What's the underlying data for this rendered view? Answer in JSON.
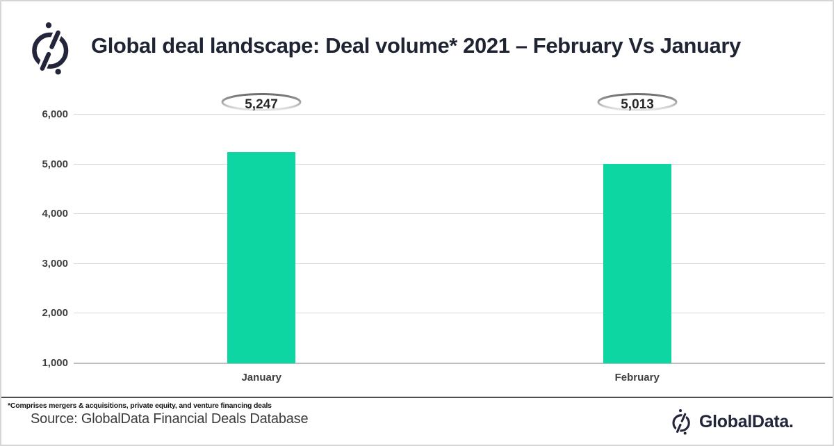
{
  "header": {
    "title": "Global deal landscape: Deal volume* 2021 – February Vs January",
    "logo_icon": "globaldata-mark-icon"
  },
  "chart_data": {
    "type": "bar",
    "categories": [
      "January",
      "February"
    ],
    "values": [
      5247,
      5013
    ],
    "value_labels": [
      "5,247",
      "5,013"
    ],
    "title": "Global deal landscape: Deal volume* 2021 – February Vs January",
    "xlabel": "",
    "ylabel": "",
    "ylim": [
      1000,
      6000
    ],
    "ytick_step": 1000,
    "ytick_labels": [
      "1,000",
      "2,000",
      "3,000",
      "4,000",
      "5,000",
      "6,000"
    ],
    "grid": true,
    "legend": "none",
    "bar_color": "#0ED6A2"
  },
  "footer": {
    "footnote": "*Comprises mergers & acquisitions, private equity, and venture financing deals",
    "source": "Source: GlobalData Financial Deals Database",
    "brand": "GlobalData.",
    "brand_icon": "globaldata-mark-icon"
  },
  "colors": {
    "bar": "#0ED6A2",
    "title_text": "#1F2433",
    "axis_text": "#3F3F3F",
    "gridline": "#DADADA",
    "axis_line": "#BDBDBD",
    "separator": "#4E4E4E",
    "oval_stroke_top": "#6E6E6E",
    "oval_stroke_bottom": "#E9E9E9"
  }
}
